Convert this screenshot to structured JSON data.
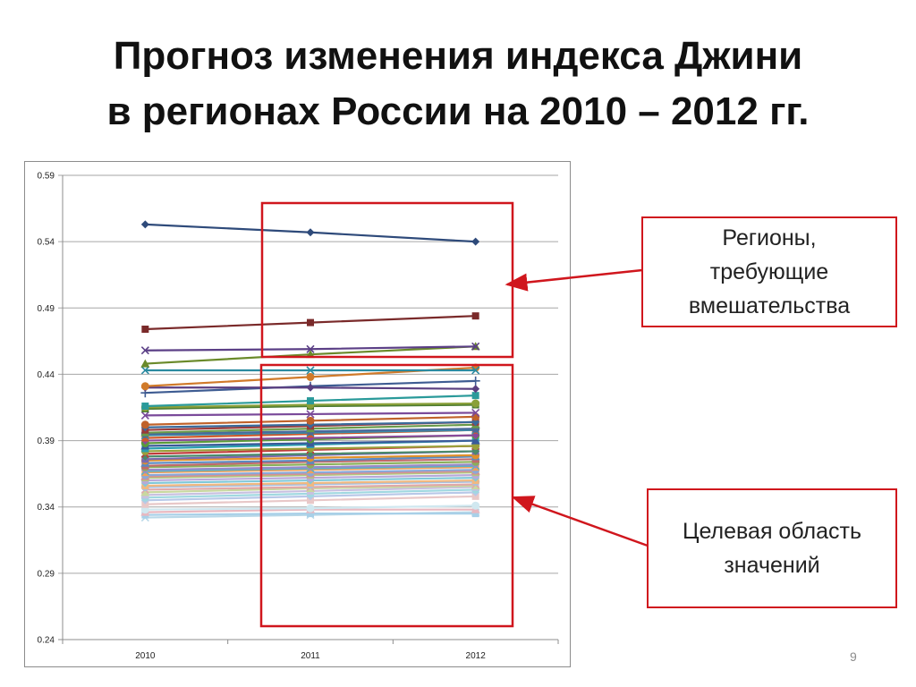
{
  "slide": {
    "title_line1": "Прогноз изменения индекса Джини",
    "title_line2": "в регионах России на 2010 – 2012 гг.",
    "number": "9",
    "accent_color": "#d0161d"
  },
  "callouts": {
    "intervention": "Регионы,\nтребующие\nвмешательства",
    "target": "Целевая область\nзначений"
  },
  "chart_data": {
    "type": "line",
    "categories": [
      "2010",
      "2011",
      "2012"
    ],
    "ylim": [
      0.24,
      0.59
    ],
    "yticks": [
      "0.24",
      "0.29",
      "0.34",
      "0.39",
      "0.44",
      "0.49",
      "0.54",
      "0.59"
    ],
    "grid": true,
    "legend": "none",
    "title": "",
    "xlabel": "",
    "ylabel": "",
    "series": [
      {
        "values": [
          0.553,
          0.547,
          0.54
        ],
        "color": "#2e4a7a",
        "marker": "diamond"
      },
      {
        "values": [
          0.474,
          0.479,
          0.484
        ],
        "color": "#7a2a2a",
        "marker": "square"
      },
      {
        "values": [
          0.458,
          0.459,
          0.461
        ],
        "color": "#5b3f86",
        "marker": "x"
      },
      {
        "values": [
          0.448,
          0.455,
          0.461
        ],
        "color": "#6a8a2a",
        "marker": "triangle"
      },
      {
        "values": [
          0.443,
          0.443,
          0.443
        ],
        "color": "#2a8aa0",
        "marker": "x"
      },
      {
        "values": [
          0.431,
          0.438,
          0.445
        ],
        "color": "#d07a2a",
        "marker": "circle"
      },
      {
        "values": [
          0.43,
          0.43,
          0.429
        ],
        "color": "#5a3f80",
        "marker": "diamond"
      },
      {
        "values": [
          0.426,
          0.431,
          0.435
        ],
        "color": "#3e5c92",
        "marker": "plus"
      },
      {
        "values": [
          0.416,
          0.42,
          0.424
        ],
        "color": "#2a9a9a",
        "marker": "square"
      },
      {
        "values": [
          0.415,
          0.417,
          0.418
        ],
        "color": "#8aa03a",
        "marker": "circle"
      },
      {
        "values": [
          0.414,
          0.416,
          0.417
        ],
        "color": "#4a7a30",
        "marker": "square"
      },
      {
        "values": [
          0.409,
          0.41,
          0.411
        ],
        "color": "#7a4a9a",
        "marker": "x"
      },
      {
        "values": [
          0.402,
          0.405,
          0.408
        ],
        "color": "#c0622a",
        "marker": "circle"
      },
      {
        "values": [
          0.4,
          0.402,
          0.404
        ],
        "color": "#3a6a9a",
        "marker": "diamond"
      },
      {
        "values": [
          0.398,
          0.401,
          0.404
        ],
        "color": "#9a3a3a",
        "marker": "square"
      },
      {
        "values": [
          0.396,
          0.399,
          0.402
        ],
        "color": "#6a9a4a",
        "marker": "triangle"
      },
      {
        "values": [
          0.395,
          0.397,
          0.399
        ],
        "color": "#4a6a9a",
        "marker": "circle"
      },
      {
        "values": [
          0.394,
          0.396,
          0.398
        ],
        "color": "#3a8aa8",
        "marker": "x"
      },
      {
        "values": [
          0.392,
          0.395,
          0.398
        ],
        "color": "#d0582a",
        "marker": "square"
      },
      {
        "values": [
          0.39,
          0.392,
          0.394
        ],
        "color": "#8a4a9a",
        "marker": "diamond"
      },
      {
        "values": [
          0.388,
          0.391,
          0.394
        ],
        "color": "#5a9a3a",
        "marker": "circle"
      },
      {
        "values": [
          0.386,
          0.388,
          0.39
        ],
        "color": "#3a5a9a",
        "marker": "triangle"
      },
      {
        "values": [
          0.384,
          0.387,
          0.39
        ],
        "color": "#2aa0b0",
        "marker": "square"
      },
      {
        "values": [
          0.382,
          0.384,
          0.386
        ],
        "color": "#9aa03a",
        "marker": "circle"
      },
      {
        "values": [
          0.38,
          0.383,
          0.386
        ],
        "color": "#c03a3a",
        "marker": "x"
      },
      {
        "values": [
          0.378,
          0.38,
          0.382
        ],
        "color": "#4a8a6a",
        "marker": "diamond"
      },
      {
        "values": [
          0.376,
          0.379,
          0.382
        ],
        "color": "#7a6ab0",
        "marker": "square"
      },
      {
        "values": [
          0.375,
          0.377,
          0.379
        ],
        "color": "#e0902a",
        "marker": "circle"
      },
      {
        "values": [
          0.373,
          0.375,
          0.378
        ],
        "color": "#5a8ac0",
        "marker": "triangle"
      },
      {
        "values": [
          0.371,
          0.374,
          0.376
        ],
        "color": "#c06a6a",
        "marker": "square"
      },
      {
        "values": [
          0.37,
          0.372,
          0.374
        ],
        "color": "#8ab05a",
        "marker": "circle"
      },
      {
        "values": [
          0.368,
          0.37,
          0.372
        ],
        "color": "#9a8ac8",
        "marker": "diamond"
      },
      {
        "values": [
          0.367,
          0.369,
          0.371
        ],
        "color": "#5ab0c8",
        "marker": "x"
      },
      {
        "values": [
          0.366,
          0.368,
          0.37
        ],
        "color": "#f0a05a",
        "marker": "square"
      },
      {
        "values": [
          0.364,
          0.366,
          0.368
        ],
        "color": "#8aa8d8",
        "marker": "circle"
      },
      {
        "values": [
          0.363,
          0.365,
          0.367
        ],
        "color": "#d89090",
        "marker": "triangle"
      },
      {
        "values": [
          0.362,
          0.364,
          0.366
        ],
        "color": "#b0c880",
        "marker": "square"
      },
      {
        "values": [
          0.36,
          0.362,
          0.364
        ],
        "color": "#b8a8d8",
        "marker": "circle"
      },
      {
        "values": [
          0.358,
          0.36,
          0.362
        ],
        "color": "#80c8d8",
        "marker": "diamond"
      },
      {
        "values": [
          0.356,
          0.358,
          0.36
        ],
        "color": "#f0b880",
        "marker": "square"
      },
      {
        "values": [
          0.355,
          0.357,
          0.359
        ],
        "color": "#a8c0e0",
        "marker": "circle"
      },
      {
        "values": [
          0.353,
          0.355,
          0.357
        ],
        "color": "#e0a8a8",
        "marker": "x"
      },
      {
        "values": [
          0.351,
          0.354,
          0.356
        ],
        "color": "#c8d8a0",
        "marker": "triangle"
      },
      {
        "values": [
          0.349,
          0.352,
          0.355
        ],
        "color": "#c8c0e0",
        "marker": "square"
      },
      {
        "values": [
          0.347,
          0.35,
          0.353
        ],
        "color": "#a0d8e0",
        "marker": "circle"
      },
      {
        "values": [
          0.345,
          0.348,
          0.351
        ],
        "color": "#b8c8e8",
        "marker": "diamond"
      },
      {
        "values": [
          0.342,
          0.345,
          0.348
        ],
        "color": "#e8c8c8",
        "marker": "square"
      },
      {
        "values": [
          0.338,
          0.339,
          0.341
        ],
        "color": "#d0e8f0",
        "marker": "circle"
      },
      {
        "values": [
          0.336,
          0.338,
          0.338
        ],
        "color": "#e8b8c0",
        "marker": "triangle"
      },
      {
        "values": [
          0.334,
          0.335,
          0.335
        ],
        "color": "#a8d0e8",
        "marker": "square"
      },
      {
        "values": [
          0.332,
          0.334,
          0.336
        ],
        "color": "#b8d8e8",
        "marker": "x"
      }
    ]
  }
}
